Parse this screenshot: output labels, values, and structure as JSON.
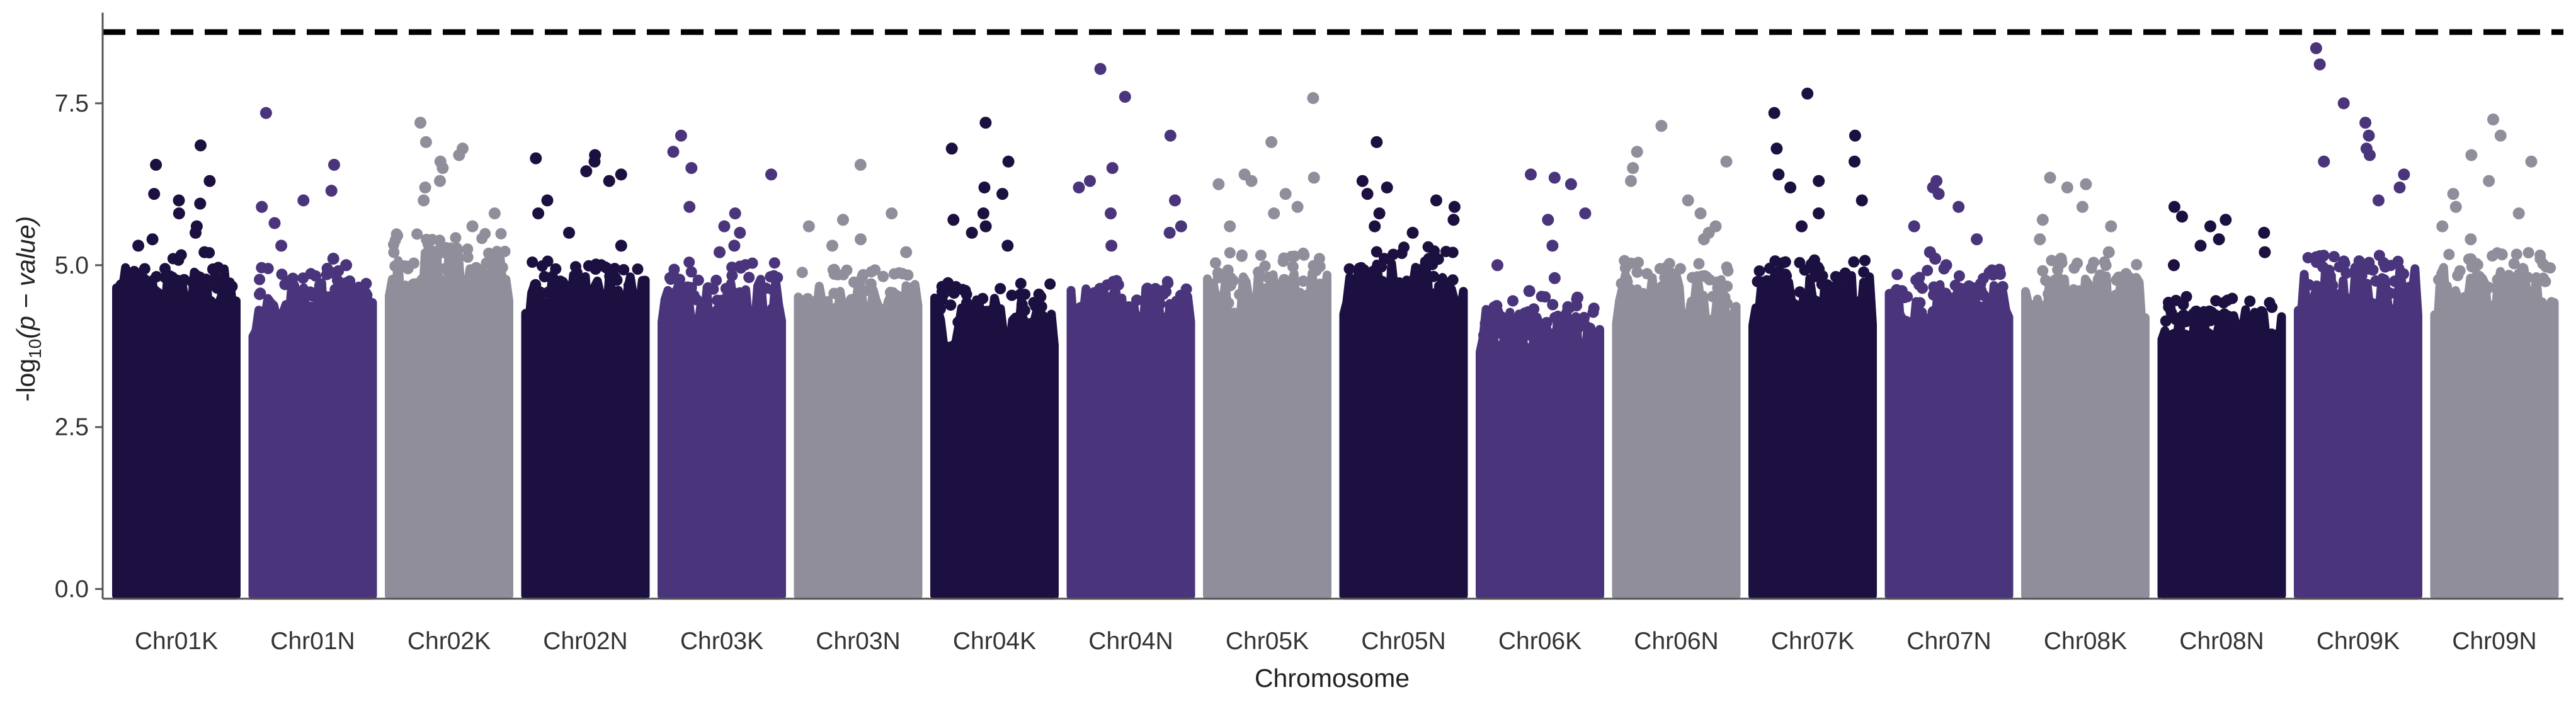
{
  "chart_data": {
    "type": "scatter",
    "subtype": "manhattan",
    "title": "",
    "xlabel": "Chromosome",
    "ylabel_prefix": "-log",
    "ylabel_sub": "10",
    "ylabel_rest": "(p − value)",
    "ylim": [
      -0.15,
      8.9
    ],
    "yticks": [
      0.0,
      2.5,
      5.0,
      7.5
    ],
    "ytick_labels": [
      "0.0",
      "2.5",
      "5.0",
      "7.5"
    ],
    "threshold": 8.6,
    "threshold_style": "dashed",
    "grid": false,
    "legend": "none",
    "colors": [
      "#1c1040",
      "#4a357c",
      "#918e9c"
    ],
    "categories": [
      "Chr01K",
      "Chr01N",
      "Chr02K",
      "Chr02N",
      "Chr03K",
      "Chr03N",
      "Chr04K",
      "Chr04N",
      "Chr05K",
      "Chr05N",
      "Chr06K",
      "Chr06N",
      "Chr07K",
      "Chr07N",
      "Chr08K",
      "Chr08N",
      "Chr09K",
      "Chr09N"
    ],
    "series": [
      {
        "chromosome": "Chr01K",
        "color_index": 0,
        "band_top": 4.6,
        "top_hits": [
          6.85,
          6.55,
          6.3,
          6.1,
          6.0,
          5.95,
          5.8,
          5.6,
          5.5,
          5.4,
          5.3,
          5.2
        ]
      },
      {
        "chromosome": "Chr01N",
        "color_index": 1,
        "band_top": 4.4,
        "top_hits": [
          7.35,
          6.55,
          6.15,
          6.0,
          5.9,
          5.65,
          5.3,
          5.1,
          5.0,
          4.9
        ]
      },
      {
        "chromosome": "Chr02K",
        "color_index": 2,
        "band_top": 4.9,
        "top_hits": [
          7.2,
          6.9,
          6.8,
          6.7,
          6.6,
          6.5,
          6.3,
          6.2,
          6.0,
          5.8,
          5.6
        ]
      },
      {
        "chromosome": "Chr02N",
        "color_index": 0,
        "band_top": 4.5,
        "top_hits": [
          6.7,
          6.65,
          6.6,
          6.45,
          6.4,
          6.3,
          6.0,
          5.8,
          5.5,
          5.3
        ]
      },
      {
        "chromosome": "Chr03K",
        "color_index": 1,
        "band_top": 4.5,
        "top_hits": [
          7.0,
          6.75,
          6.5,
          6.4,
          5.9,
          5.8,
          5.6,
          5.5,
          5.3,
          5.2
        ]
      },
      {
        "chromosome": "Chr03N",
        "color_index": 2,
        "band_top": 4.4,
        "top_hits": [
          6.55,
          5.8,
          5.7,
          5.6,
          5.4,
          5.3,
          5.2
        ]
      },
      {
        "chromosome": "Chr04K",
        "color_index": 0,
        "band_top": 4.2,
        "top_hits": [
          7.2,
          6.8,
          6.6,
          6.2,
          6.1,
          5.8,
          5.7,
          5.6,
          5.5,
          5.3
        ]
      },
      {
        "chromosome": "Chr04N",
        "color_index": 1,
        "band_top": 4.3,
        "top_hits": [
          8.03,
          7.6,
          7.0,
          6.5,
          6.3,
          6.2,
          6.0,
          5.8,
          5.6,
          5.5,
          5.3
        ]
      },
      {
        "chromosome": "Chr05K",
        "color_index": 2,
        "band_top": 4.6,
        "top_hits": [
          7.58,
          6.9,
          6.4,
          6.35,
          6.3,
          6.25,
          6.1,
          5.9,
          5.8,
          5.6
        ]
      },
      {
        "chromosome": "Chr05N",
        "color_index": 0,
        "band_top": 4.7,
        "top_hits": [
          6.9,
          6.3,
          6.2,
          6.1,
          6.0,
          5.9,
          5.8,
          5.7,
          5.6,
          5.5
        ]
      },
      {
        "chromosome": "Chr06K",
        "color_index": 1,
        "band_top": 4.0,
        "top_hits": [
          6.4,
          6.35,
          6.25,
          5.8,
          5.7,
          5.3,
          5.0,
          4.8,
          4.6,
          4.5
        ]
      },
      {
        "chromosome": "Chr06N",
        "color_index": 2,
        "band_top": 4.5,
        "top_hits": [
          7.15,
          6.75,
          6.6,
          6.5,
          6.3,
          6.0,
          5.8,
          5.6,
          5.5,
          5.4
        ]
      },
      {
        "chromosome": "Chr07K",
        "color_index": 0,
        "band_top": 4.5,
        "top_hits": [
          7.65,
          7.35,
          7.0,
          6.8,
          6.6,
          6.4,
          6.3,
          6.2,
          6.0,
          5.8,
          5.6
        ]
      },
      {
        "chromosome": "Chr07N",
        "color_index": 1,
        "band_top": 4.4,
        "top_hits": [
          6.3,
          6.2,
          6.1,
          5.9,
          5.6,
          5.4,
          5.2,
          5.1,
          5.0
        ]
      },
      {
        "chromosome": "Chr08K",
        "color_index": 2,
        "band_top": 4.5,
        "top_hits": [
          6.35,
          6.25,
          6.2,
          5.9,
          5.7,
          5.6,
          5.4,
          5.2,
          5.1
        ]
      },
      {
        "chromosome": "Chr08N",
        "color_index": 0,
        "band_top": 4.0,
        "top_hits": [
          5.9,
          5.75,
          5.7,
          5.6,
          5.5,
          5.4,
          5.3,
          5.2,
          5.0
        ]
      },
      {
        "chromosome": "Chr09K",
        "color_index": 1,
        "band_top": 4.6,
        "top_hits": [
          8.35,
          8.1,
          7.5,
          7.2,
          7.0,
          6.8,
          6.7,
          6.6,
          6.4,
          6.2,
          6.0
        ]
      },
      {
        "chromosome": "Chr09N",
        "color_index": 2,
        "band_top": 4.6,
        "top_hits": [
          7.25,
          7.0,
          6.7,
          6.6,
          6.3,
          6.1,
          5.9,
          5.8,
          5.6,
          5.4
        ]
      }
    ]
  }
}
